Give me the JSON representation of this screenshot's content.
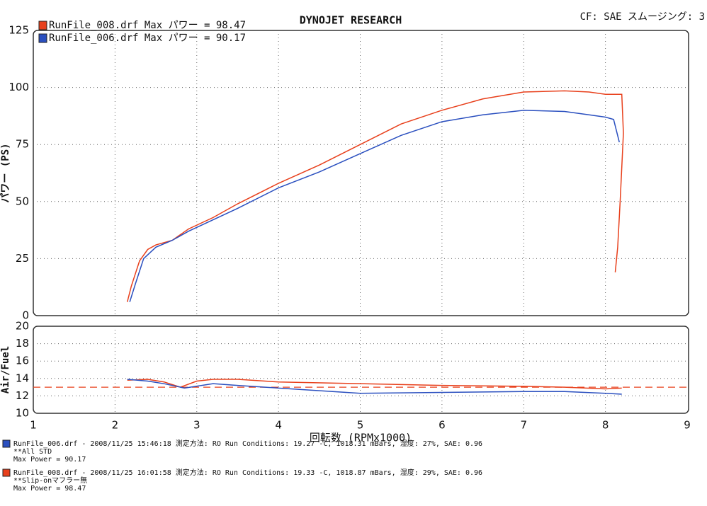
{
  "header": {
    "title": "DYNOJET  RESEARCH",
    "settings": "CF: SAE  スムージング: 3"
  },
  "chart_data": [
    {
      "type": "line",
      "ylabel": "パワー (PS)",
      "xlim": [
        1,
        9
      ],
      "xticks": [
        1,
        2,
        3,
        4,
        5,
        6,
        7,
        8,
        9
      ],
      "ylim": [
        0,
        125
      ],
      "yticks": [
        0,
        25,
        50,
        75,
        100,
        125
      ],
      "grid": true,
      "legend": "top-left",
      "series": [
        {
          "name": "RunFile_008.drf Max パワー = 98.47",
          "color": "#e8401c",
          "x": [
            2.15,
            2.2,
            2.3,
            2.4,
            2.5,
            2.7,
            2.9,
            3.2,
            3.5,
            4.0,
            4.5,
            5.0,
            5.5,
            6.0,
            6.5,
            7.0,
            7.5,
            7.8,
            8.0,
            8.2,
            8.22,
            8.18,
            8.15,
            8.12
          ],
          "values": [
            6,
            13,
            24,
            29,
            31,
            33,
            38,
            43,
            49,
            58,
            66,
            75,
            84,
            90,
            95,
            98,
            98.5,
            98,
            97,
            97,
            80,
            50,
            30,
            19
          ]
        },
        {
          "name": "RunFile_006.drf Max パワー = 90.17",
          "color": "#2a4fbf",
          "x": [
            2.18,
            2.25,
            2.35,
            2.5,
            2.7,
            2.9,
            3.2,
            3.5,
            4.0,
            4.5,
            5.0,
            5.5,
            6.0,
            6.5,
            7.0,
            7.5,
            7.8,
            8.0,
            8.1,
            8.17
          ],
          "values": [
            6,
            14,
            25,
            30,
            33,
            37,
            42,
            47,
            56,
            63,
            71,
            79,
            85,
            88,
            90,
            89.5,
            88,
            87,
            86,
            76
          ]
        }
      ]
    },
    {
      "type": "line",
      "ylabel": "Air/Fuel",
      "xlabel": "回転数 (RPMx1000)",
      "xlim": [
        1,
        9
      ],
      "xticks": [
        1,
        2,
        3,
        4,
        5,
        6,
        7,
        8,
        9
      ],
      "ylim": [
        10,
        20
      ],
      "yticks": [
        10,
        12,
        14,
        16,
        18,
        20
      ],
      "grid": true,
      "reference_line": 13,
      "reference_color": "#e8401c",
      "series": [
        {
          "color": "#e8401c",
          "x": [
            2.15,
            2.4,
            2.6,
            2.8,
            3.0,
            3.2,
            3.5,
            4.0,
            5.0,
            6.0,
            7.0,
            7.5,
            8.0,
            8.2
          ],
          "values": [
            13.8,
            13.9,
            13.6,
            13.0,
            13.7,
            13.9,
            13.9,
            13.6,
            13.4,
            13.2,
            13.1,
            13.0,
            12.8,
            12.9
          ]
        },
        {
          "color": "#2a4fbf",
          "x": [
            2.15,
            2.4,
            2.6,
            2.85,
            3.2,
            3.5,
            4.0,
            5.0,
            6.0,
            7.0,
            7.5,
            8.0,
            8.2
          ],
          "values": [
            13.9,
            13.7,
            13.4,
            12.9,
            13.4,
            13.2,
            12.9,
            12.3,
            12.4,
            12.5,
            12.5,
            12.3,
            12.2
          ]
        }
      ]
    }
  ],
  "footer": {
    "runs": [
      {
        "color": "#2a4fbf",
        "lines": [
          "RunFile_006.drf - 2008/11/25 15:46:18  測定方法: RO  Run Conditions: 19.27 -C, 1018.31 mBars,  湿度: 27%, SAE: 0.96",
          "**All STD",
          "Max Power = 90.17"
        ]
      },
      {
        "color": "#e8401c",
        "lines": [
          "RunFile_008.drf - 2008/11/25 16:01:58  測定方法: RO  Run Conditions: 19.33 -C, 1018.87 mBars,  湿度: 29%, SAE: 0.96",
          "**Slip-onマフラー無",
          "Max Power = 98.47"
        ]
      }
    ]
  }
}
